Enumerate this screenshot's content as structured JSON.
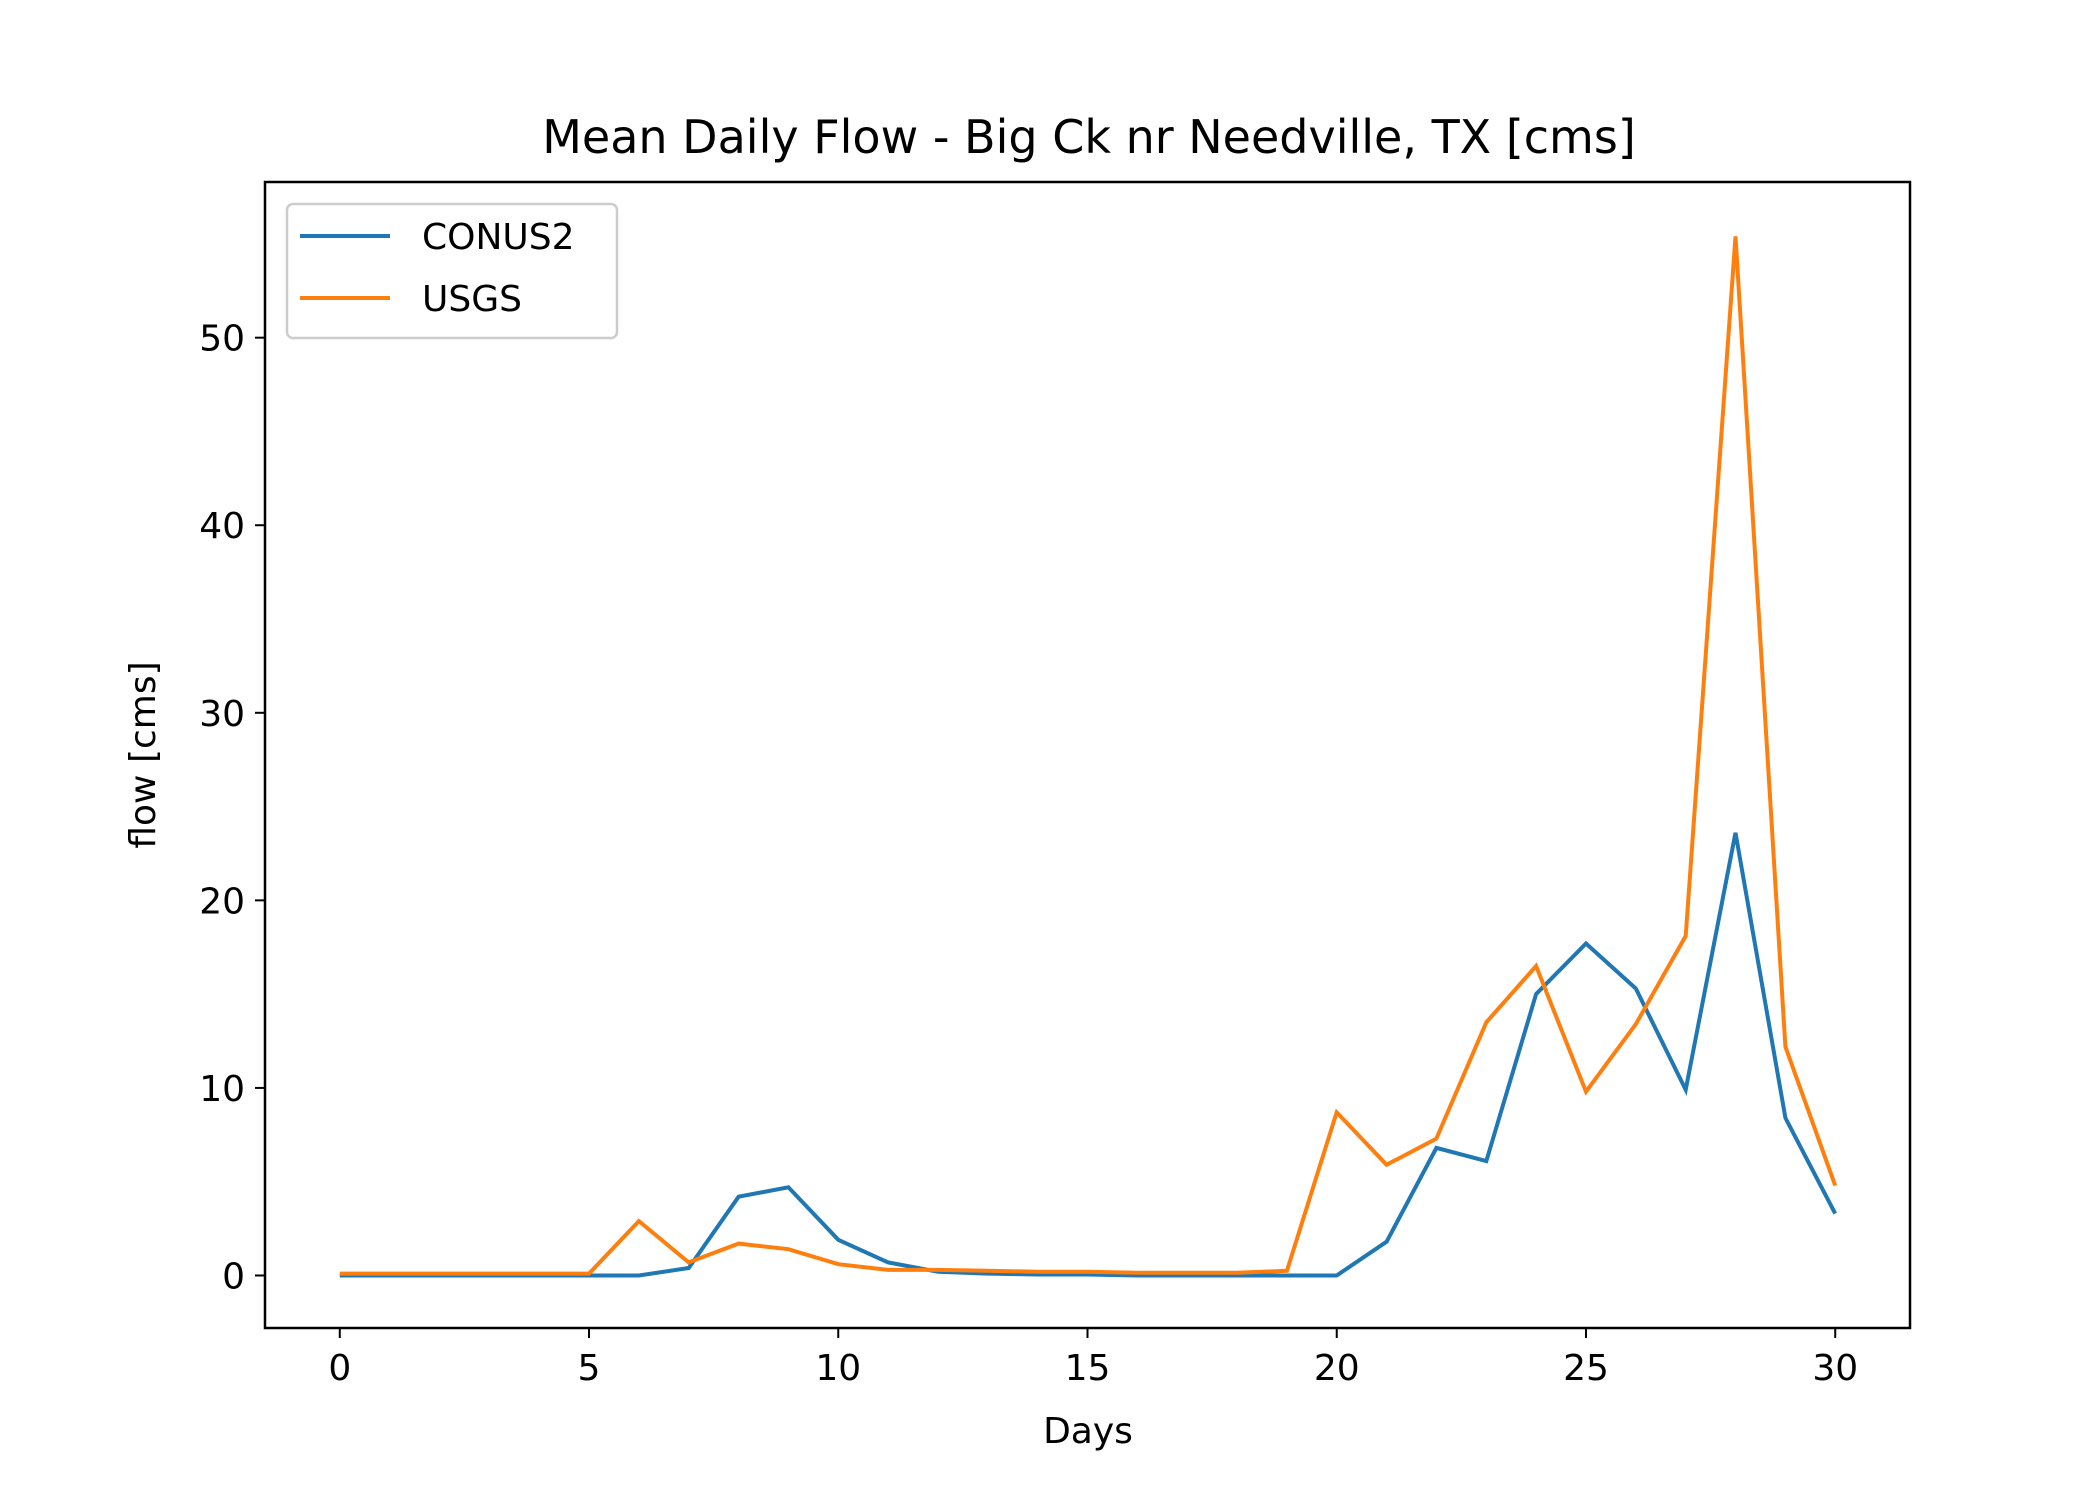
{
  "chart_data": {
    "type": "line",
    "title": "Mean Daily Flow - Big Ck nr Needville, TX [cms]",
    "xlabel": "Days",
    "ylabel": "flow [cms]",
    "xlim": [
      -1.5,
      31.5
    ],
    "ylim": [
      -2.8,
      58.3
    ],
    "xticks": [
      0,
      5,
      10,
      15,
      20,
      25,
      30
    ],
    "yticks": [
      0,
      10,
      20,
      30,
      40,
      50
    ],
    "grid": false,
    "legend_position": "top-left",
    "x": [
      0,
      1,
      2,
      3,
      4,
      5,
      6,
      7,
      8,
      9,
      10,
      11,
      12,
      13,
      14,
      15,
      16,
      17,
      18,
      19,
      20,
      21,
      22,
      23,
      24,
      25,
      26,
      27,
      28,
      29,
      30
    ],
    "series": [
      {
        "name": "CONUS2",
        "color": "#1f77b4",
        "values": [
          0,
          0,
          0,
          0,
          0,
          0,
          0,
          0.4,
          4.2,
          4.7,
          1.9,
          0.7,
          0.2,
          0.1,
          0.05,
          0.05,
          0,
          0,
          0,
          0,
          0,
          1.8,
          6.8,
          6.1,
          15.0,
          17.7,
          15.3,
          9.9,
          23.6,
          8.4,
          3.3
        ]
      },
      {
        "name": "USGS",
        "color": "#ff7f0e",
        "values": [
          0.1,
          0.1,
          0.1,
          0.1,
          0.1,
          0.1,
          2.9,
          0.7,
          1.7,
          1.4,
          0.6,
          0.3,
          0.3,
          0.25,
          0.2,
          0.2,
          0.15,
          0.15,
          0.15,
          0.25,
          8.7,
          5.9,
          7.3,
          13.5,
          16.5,
          9.8,
          13.4,
          18.1,
          55.4,
          12.2,
          4.8
        ]
      }
    ]
  }
}
